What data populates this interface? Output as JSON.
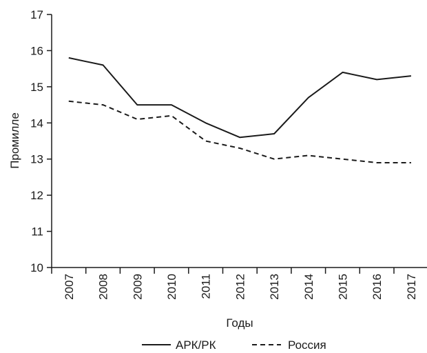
{
  "chart_data": {
    "type": "line",
    "x": [
      "2007",
      "2008",
      "2009",
      "2010",
      "2011",
      "2012",
      "2013",
      "2014",
      "2015",
      "2016",
      "2017"
    ],
    "series": [
      {
        "name": "АРК/РК",
        "style": "solid",
        "color": "#1a1a1a",
        "values": [
          15.8,
          15.6,
          14.5,
          14.5,
          14.0,
          13.6,
          13.7,
          14.7,
          15.4,
          15.2,
          15.3
        ]
      },
      {
        "name": "Россия",
        "style": "dashed",
        "color": "#1a1a1a",
        "values": [
          14.6,
          14.5,
          14.1,
          14.2,
          13.5,
          13.3,
          13.0,
          13.1,
          13.0,
          12.9,
          12.9
        ]
      }
    ],
    "xlabel": "Годы",
    "ylabel": "Промилле",
    "ylim": [
      10,
      17
    ],
    "yticks": [
      10,
      11,
      12,
      13,
      14,
      15,
      16,
      17
    ],
    "grid": false,
    "legend_position": "bottom"
  }
}
